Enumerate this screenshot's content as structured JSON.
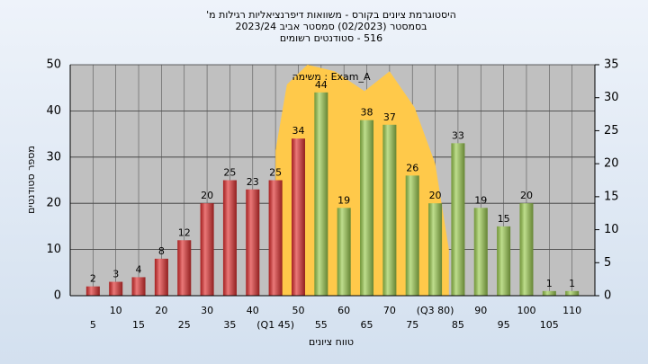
{
  "chart_data": {
    "type": "bar",
    "title": [
      "היסטוגרמת ציונים בקורס - משוואות דיפרנציאליות רגילות מ'",
      "בסמסטר  (02/2023)  סמסטר אביב 2023/24",
      "516 - סטודנטים רשומים"
    ],
    "legend_text": "Exam_A : משימה",
    "xlabel": "טווח ציונים",
    "ylabel": "מספר סטודנטים",
    "x": [
      5,
      10,
      15,
      20,
      25,
      30,
      35,
      40,
      45,
      50,
      55,
      60,
      65,
      70,
      75,
      80,
      85,
      90,
      95,
      100,
      105,
      110
    ],
    "series": [
      {
        "values": [
          2,
          3,
          4,
          8,
          12,
          20,
          25,
          23,
          25,
          34,
          44,
          19,
          38,
          37,
          26,
          20,
          33,
          19,
          15,
          20,
          1,
          1
        ],
        "colors": [
          "#e03030",
          "#e03030",
          "#e03030",
          "#e03030",
          "#e03030",
          "#e03030",
          "#e03030",
          "#e03030",
          "#e03030",
          "#e03030",
          "#9ccc50",
          "#9ccc50",
          "#9ccc50",
          "#9ccc50",
          "#9ccc50",
          "#9ccc50",
          "#9ccc50",
          "#9ccc50",
          "#9ccc50",
          "#9ccc50",
          "#9ccc50",
          "#9ccc50"
        ]
      },
      {
        "type": "area",
        "axis": "y2",
        "color": "#ffc94a",
        "x": [
          45,
          47.5,
          52,
          58,
          64.5,
          70,
          75.5,
          80,
          83
        ],
        "values": [
          22,
          32,
          35,
          34,
          31,
          34,
          28.5,
          20,
          7
        ]
      }
    ],
    "xlim": [
      0,
      115
    ],
    "xticks": [
      5,
      10,
      15,
      20,
      25,
      30,
      35,
      40,
      {
        "value": 45,
        "label": "(Q1 45)"
      },
      50,
      55,
      60,
      65,
      70,
      75,
      {
        "value": 80,
        "label": "(Q3 80)"
      },
      85,
      90,
      95,
      100,
      105,
      110
    ],
    "ylim": [
      0,
      50
    ],
    "yticks": [
      0,
      10,
      20,
      30,
      40,
      50
    ],
    "y2lim": [
      0,
      35
    ],
    "y2ticks": [
      0,
      5,
      10,
      15,
      20,
      25,
      30,
      35
    ],
    "grid": true
  }
}
